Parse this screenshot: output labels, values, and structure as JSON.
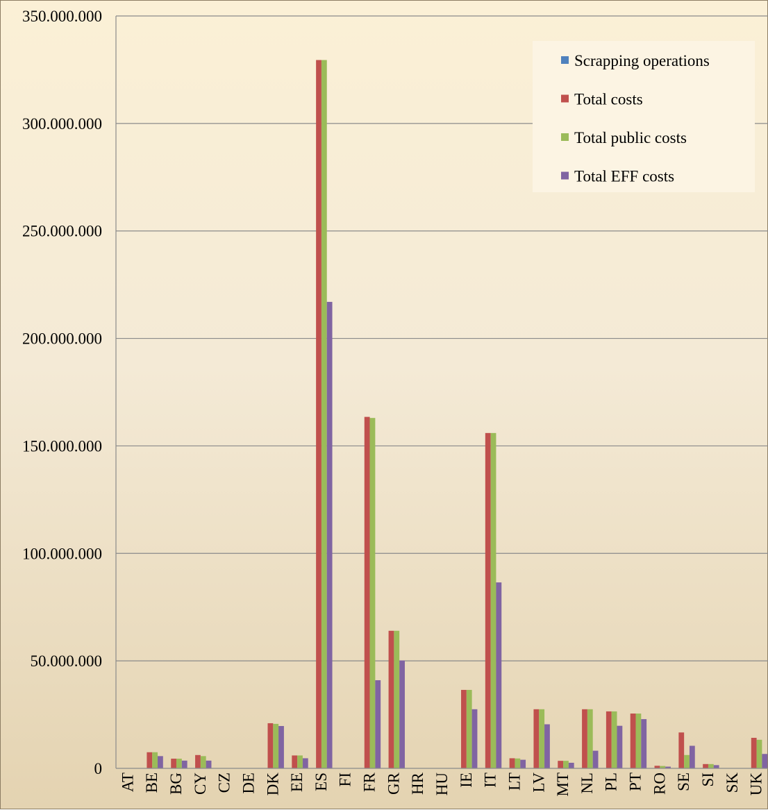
{
  "chart_data": {
    "type": "bar",
    "categories": [
      "AT",
      "BE",
      "BG",
      "CY",
      "CZ",
      "DE",
      "DK",
      "EE",
      "ES",
      "FI",
      "FR",
      "GR",
      "HR",
      "HU",
      "IE",
      "IT",
      "LT",
      "LV",
      "MT",
      "NL",
      "PL",
      "PT",
      "RO",
      "SE",
      "SI",
      "SK",
      "UK"
    ],
    "series": [
      {
        "name": "Scrapping operations",
        "color": "#4f81bd",
        "values": [
          0,
          0,
          0,
          0,
          0,
          0,
          0,
          0,
          0,
          0,
          0,
          0,
          0,
          0,
          0,
          0,
          0,
          0,
          0,
          0,
          0,
          0,
          0,
          0,
          0,
          0,
          0
        ]
      },
      {
        "name": "Total costs",
        "color": "#c0504d",
        "values": [
          0,
          7500000,
          4500000,
          6200000,
          0,
          0,
          21000000,
          6000000,
          329500000,
          0,
          163500000,
          64000000,
          0,
          0,
          36500000,
          156000000,
          4700000,
          27500000,
          3500000,
          27500000,
          26500000,
          25500000,
          1200000,
          16700000,
          2000000,
          0,
          14200000
        ]
      },
      {
        "name": "Total public costs",
        "color": "#9bbb59",
        "values": [
          0,
          7500000,
          4500000,
          5700000,
          0,
          0,
          20700000,
          6000000,
          329500000,
          0,
          163000000,
          64000000,
          0,
          0,
          36500000,
          156000000,
          4600000,
          27500000,
          3500000,
          27500000,
          26500000,
          25500000,
          1100000,
          6200000,
          2000000,
          0,
          13300000
        ]
      },
      {
        "name": "Total EFF costs",
        "color": "#8064a2",
        "values": [
          0,
          5700000,
          3600000,
          3600000,
          0,
          0,
          19700000,
          4700000,
          217000000,
          0,
          41000000,
          50200000,
          0,
          0,
          27500000,
          86500000,
          4000000,
          20500000,
          2600000,
          8200000,
          19800000,
          22900000,
          800000,
          10500000,
          1500000,
          0,
          6700000
        ]
      }
    ],
    "yticks": [
      "0",
      "50.000.000",
      "100.000.000",
      "150.000.000",
      "200.000.000",
      "250.000.000",
      "300.000.000",
      "350.000.000"
    ],
    "ylim": [
      0,
      350000000
    ],
    "grid": true,
    "legend_position": "top-right",
    "title": "",
    "xlabel": "",
    "ylabel": ""
  }
}
